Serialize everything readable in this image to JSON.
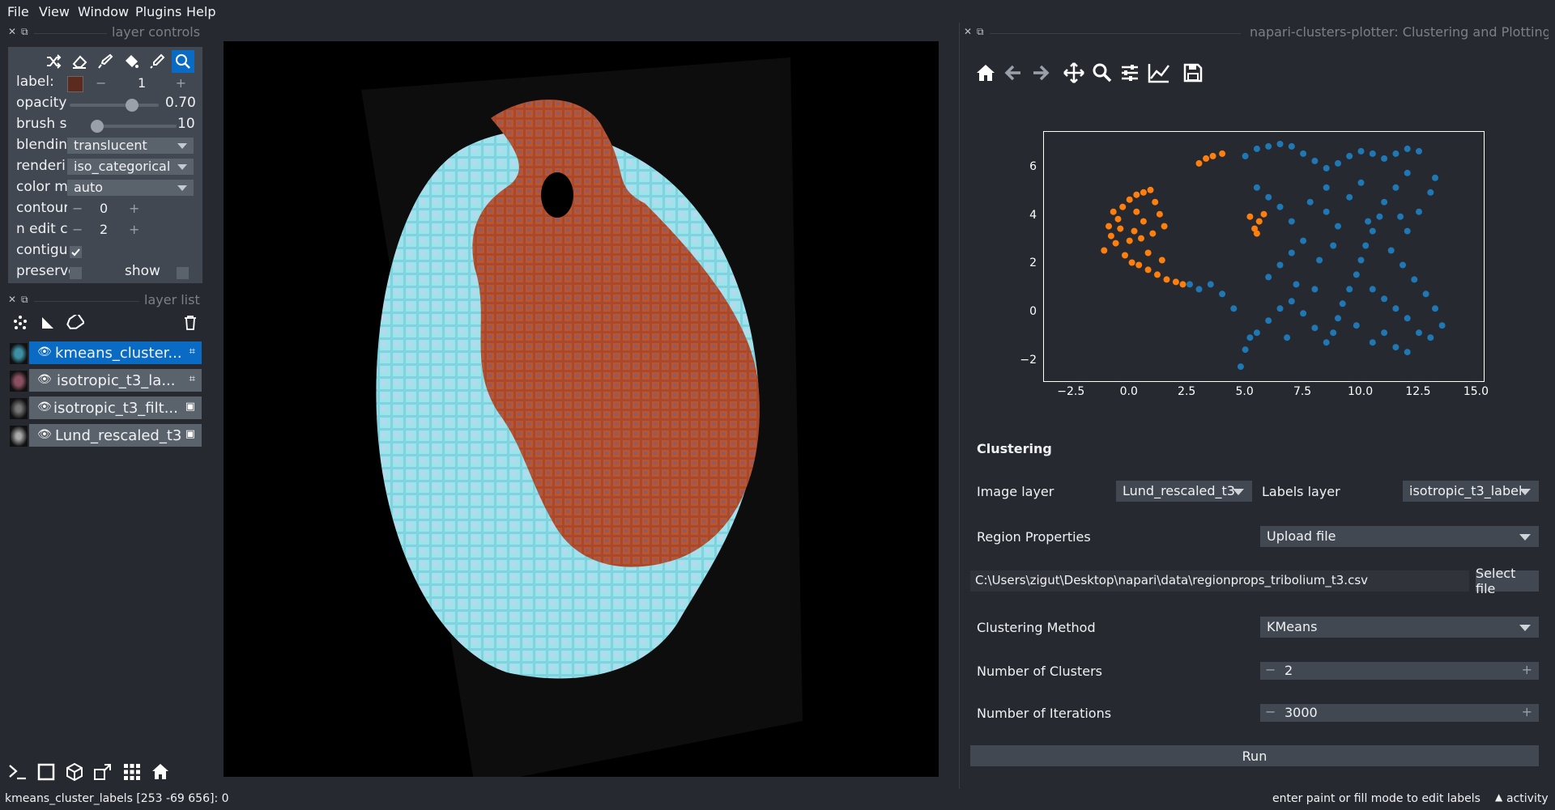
{
  "menu": [
    "File",
    "View",
    "Window",
    "Plugins",
    "Help"
  ],
  "layer_controls": {
    "title": "layer controls",
    "label_label": "label:",
    "label_value": "1",
    "label_color": "#5c2a1e",
    "opacity_label": "opacity",
    "opacity_value": "0.70",
    "opacity_fraction": 0.7,
    "brush_label": "brush s",
    "brush_value": "10",
    "blending_label": "blendin",
    "blending_value": "translucent",
    "rendering_label": "renderi",
    "rendering_value": "iso_categorical",
    "colormode_label": "color m",
    "colormode_value": "auto",
    "contour_label": "contour",
    "contour_value": "0",
    "ndim_label": "n edit c",
    "ndim_value": "2",
    "contiguous_label": "contigu",
    "contiguous_checked": true,
    "preserve_label": "preserve",
    "show_label": "show",
    "minus": "−",
    "plus": "+"
  },
  "layer_list": {
    "title": "layer list",
    "layers": [
      {
        "name": "kmeans_cluster...",
        "selected": true,
        "type": "labels"
      },
      {
        "name": "isotropic_t3_la...",
        "selected": false,
        "type": "labels"
      },
      {
        "name": "isotropic_t3_filt...",
        "selected": false,
        "type": "image"
      },
      {
        "name": "Lund_rescaled_t3",
        "selected": false,
        "type": "image"
      }
    ]
  },
  "right_dock": {
    "title": "napari-clusters-plotter: Clustering and Plotting",
    "plot": {
      "x_ticks": [
        "−2.5",
        "0.0",
        "2.5",
        "5.0",
        "7.5",
        "10.0",
        "12.5",
        "15.0"
      ],
      "y_ticks": [
        "6",
        "4",
        "2",
        "0",
        "−2"
      ]
    },
    "clustering": {
      "heading": "Clustering",
      "image_layer_label": "Image layer",
      "image_layer_value": "Lund_rescaled_t3",
      "labels_layer_label": "Labels layer",
      "labels_layer_value": "isotropic_t3_label",
      "region_props_label": "Region Properties",
      "region_props_value": "Upload file",
      "file_path": "C:\\Users\\zigut\\Desktop\\napari\\data\\regionprops_tribolium_t3.csv",
      "select_file": "Select file",
      "method_label": "Clustering Method",
      "method_value": "KMeans",
      "n_clusters_label": "Number of Clusters",
      "n_clusters_value": "2",
      "n_iter_label": "Number of Iterations",
      "n_iter_value": "3000",
      "run": "Run",
      "minus": "−",
      "plus": "+"
    }
  },
  "chart_data": {
    "type": "scatter",
    "xlim": [
      -3.7,
      15.3
    ],
    "ylim": [
      -2.8,
      7.5
    ],
    "series": [
      {
        "color": "#ff7f0e",
        "points": [
          [
            -1.1,
            2.6
          ],
          [
            -0.8,
            3.2
          ],
          [
            -0.5,
            3.9
          ],
          [
            -0.3,
            4.4
          ],
          [
            0.0,
            4.7
          ],
          [
            0.3,
            4.9
          ],
          [
            0.6,
            5.0
          ],
          [
            0.9,
            5.1
          ],
          [
            1.1,
            4.6
          ],
          [
            1.3,
            4.1
          ],
          [
            1.5,
            3.6
          ],
          [
            -0.9,
            3.6
          ],
          [
            -0.6,
            2.9
          ],
          [
            -0.2,
            2.4
          ],
          [
            0.1,
            2.1
          ],
          [
            0.4,
            2.0
          ],
          [
            0.8,
            1.8
          ],
          [
            1.2,
            1.6
          ],
          [
            1.6,
            1.4
          ],
          [
            2.0,
            1.3
          ],
          [
            2.3,
            1.2
          ],
          [
            0.2,
            3.4
          ],
          [
            0.5,
            3.1
          ],
          [
            -0.4,
            3.5
          ],
          [
            0.0,
            3.0
          ],
          [
            0.8,
            2.5
          ],
          [
            1.0,
            3.3
          ],
          [
            3.0,
            6.2
          ],
          [
            3.3,
            6.4
          ],
          [
            3.6,
            6.5
          ],
          [
            4.0,
            6.6
          ],
          [
            5.2,
            4.0
          ],
          [
            5.4,
            3.5
          ],
          [
            5.6,
            3.8
          ],
          [
            5.8,
            4.1
          ],
          [
            5.5,
            3.3
          ],
          [
            0.3,
            4.2
          ],
          [
            -0.7,
            4.2
          ],
          [
            0.6,
            3.8
          ],
          [
            1.4,
            2.2
          ]
        ]
      },
      {
        "color": "#1f77b4",
        "points": [
          [
            5.0,
            6.5
          ],
          [
            5.5,
            6.8
          ],
          [
            6.0,
            6.9
          ],
          [
            6.5,
            7.0
          ],
          [
            7.0,
            6.9
          ],
          [
            7.5,
            6.6
          ],
          [
            8.0,
            6.3
          ],
          [
            8.5,
            6.0
          ],
          [
            9.0,
            6.2
          ],
          [
            9.5,
            6.5
          ],
          [
            10.0,
            6.7
          ],
          [
            10.5,
            6.6
          ],
          [
            11.0,
            6.4
          ],
          [
            11.5,
            6.6
          ],
          [
            12.0,
            6.8
          ],
          [
            12.5,
            6.7
          ],
          [
            12.0,
            5.8
          ],
          [
            11.5,
            5.2
          ],
          [
            11.0,
            4.6
          ],
          [
            10.8,
            4.0
          ],
          [
            10.5,
            3.4
          ],
          [
            10.2,
            2.8
          ],
          [
            10.0,
            2.2
          ],
          [
            9.8,
            1.6
          ],
          [
            9.5,
            1.0
          ],
          [
            9.2,
            0.4
          ],
          [
            9.0,
            -0.2
          ],
          [
            8.8,
            -0.8
          ],
          [
            8.5,
            -1.2
          ],
          [
            8.0,
            -0.6
          ],
          [
            7.5,
            0.0
          ],
          [
            7.0,
            0.5
          ],
          [
            6.5,
            0.2
          ],
          [
            6.0,
            -0.3
          ],
          [
            5.5,
            -0.8
          ],
          [
            5.0,
            -1.5
          ],
          [
            4.8,
            -2.2
          ],
          [
            5.2,
            -1.0
          ],
          [
            4.5,
            0.2
          ],
          [
            4.0,
            0.8
          ],
          [
            3.5,
            1.2
          ],
          [
            3.0,
            1.0
          ],
          [
            2.6,
            1.2
          ],
          [
            6.0,
            1.5
          ],
          [
            6.5,
            2.0
          ],
          [
            7.0,
            2.5
          ],
          [
            7.5,
            3.0
          ],
          [
            7.0,
            3.8
          ],
          [
            6.5,
            4.4
          ],
          [
            6.0,
            4.8
          ],
          [
            5.5,
            5.2
          ],
          [
            7.8,
            4.6
          ],
          [
            8.5,
            4.2
          ],
          [
            9.0,
            3.6
          ],
          [
            8.8,
            2.8
          ],
          [
            8.2,
            2.2
          ],
          [
            10.5,
            1.0
          ],
          [
            11.0,
            0.6
          ],
          [
            11.5,
            0.2
          ],
          [
            12.0,
            -0.2
          ],
          [
            12.5,
            -0.8
          ],
          [
            13.0,
            -1.0
          ],
          [
            13.5,
            -0.5
          ],
          [
            13.2,
            0.2
          ],
          [
            12.8,
            0.8
          ],
          [
            12.3,
            1.4
          ],
          [
            11.8,
            2.0
          ],
          [
            11.3,
            2.6
          ],
          [
            12.0,
            3.4
          ],
          [
            12.5,
            4.2
          ],
          [
            13.0,
            5.0
          ],
          [
            13.2,
            5.6
          ],
          [
            9.5,
            4.8
          ],
          [
            10.0,
            5.4
          ],
          [
            8.5,
            5.2
          ],
          [
            11.0,
            -0.8
          ],
          [
            10.5,
            -1.2
          ],
          [
            11.5,
            -1.4
          ],
          [
            12.0,
            -1.6
          ],
          [
            9.8,
            -0.5
          ],
          [
            6.8,
            -1.0
          ],
          [
            7.2,
            1.2
          ],
          [
            8.0,
            1.0
          ],
          [
            10.3,
            3.8
          ],
          [
            11.7,
            4.0
          ]
        ]
      }
    ]
  },
  "status": {
    "left": "kmeans_cluster_labels [253 -69 656]: 0",
    "right": "enter paint or fill mode to edit labels",
    "activity": "activity"
  }
}
